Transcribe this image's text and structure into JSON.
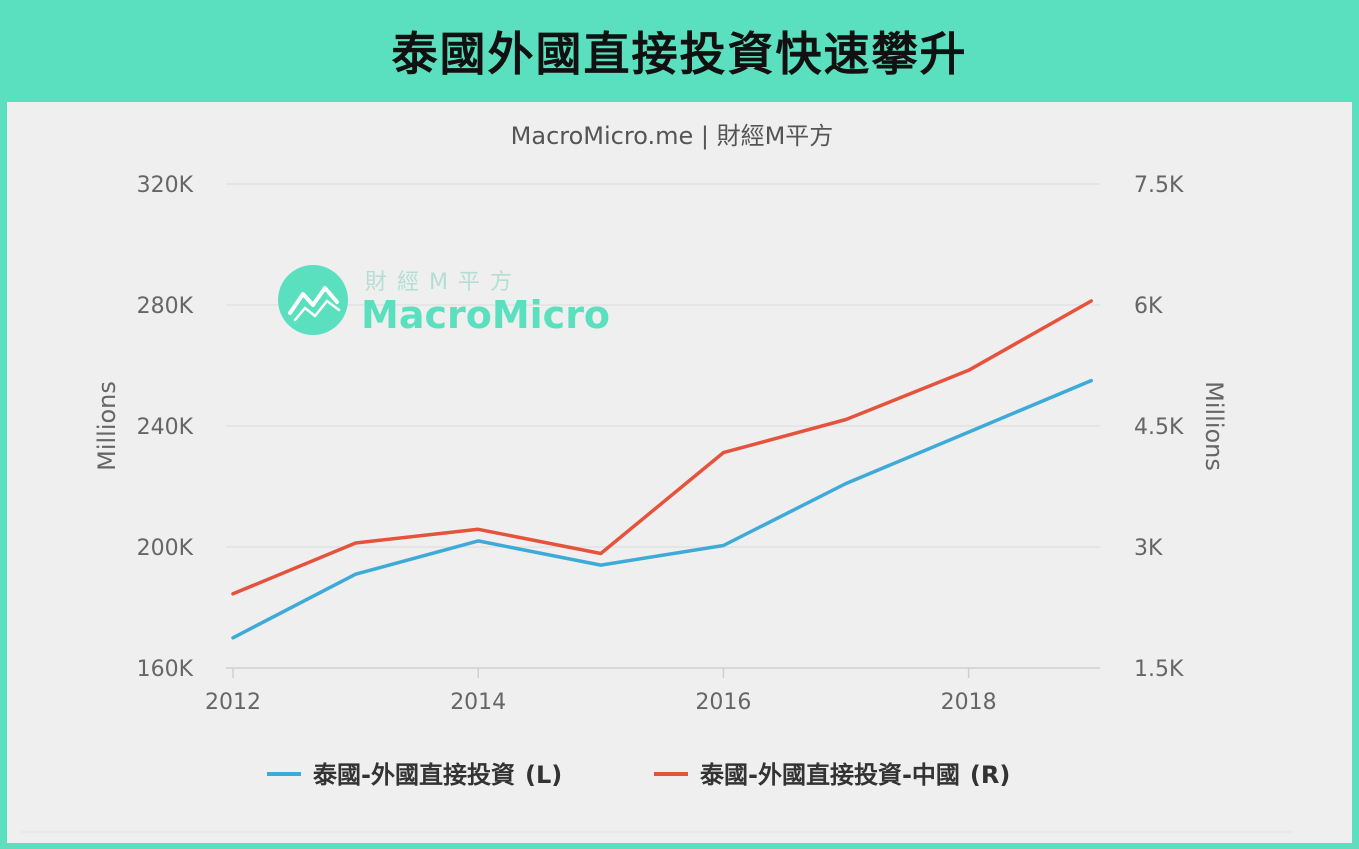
{
  "banner": {
    "title": "泰國外國直接投資快速攀升"
  },
  "watermark": {
    "top_text": "財經M平方",
    "main_text": "MacroMicro"
  },
  "colors": {
    "accent": "#5be0bf",
    "series_l": "#3eaad8",
    "series_r": "#e5533d"
  },
  "chart_data": {
    "type": "line",
    "title": "MacroMicro.me | 財經M平方",
    "x": [
      2012,
      2013,
      2014,
      2015,
      2016,
      2017,
      2018,
      2019
    ],
    "x_ticks": [
      "2012",
      "2014",
      "2016",
      "2018"
    ],
    "y_left": {
      "label": "Millions",
      "ylim": [
        160000,
        320000
      ],
      "ticks": [
        "320K",
        "280K",
        "240K",
        "200K",
        "160K"
      ]
    },
    "y_right": {
      "label": "Millions",
      "ylim": [
        1500,
        7500
      ],
      "ticks": [
        "7.5K",
        "6K",
        "4.5K",
        "3K",
        "1.5K"
      ]
    },
    "grid": true,
    "legend_position": "bottom",
    "series": [
      {
        "name": "泰國-外國直接投資",
        "axis_tag": "(L)",
        "axis": "left",
        "color": "#3eaad8",
        "values": [
          170000,
          191000,
          202000,
          194000,
          200500,
          221000,
          238000,
          255000
        ]
      },
      {
        "name": "泰國-外國直接投資-中國",
        "axis_tag": "(R)",
        "axis": "right",
        "color": "#e5533d",
        "values": [
          2420,
          3050,
          3220,
          2920,
          4170,
          4580,
          5190,
          6050
        ]
      }
    ]
  }
}
